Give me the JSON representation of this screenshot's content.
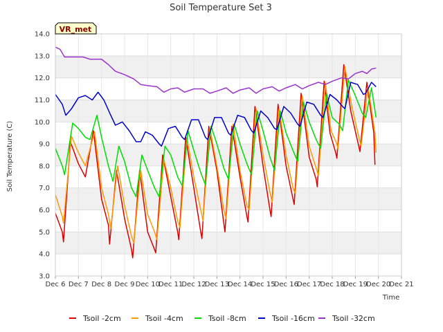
{
  "chart_data": {
    "type": "line",
    "title": "Soil Temperature Set 3",
    "xlabel": "Time",
    "ylabel": "Soil Temperature (C)",
    "xlim": [
      6,
      21
    ],
    "ylim": [
      3.0,
      14.0
    ],
    "x_ticks": [
      "Dec 6",
      "Dec 7",
      "Dec 8",
      "Dec 9",
      "Dec 10",
      "Dec 11",
      "Dec 12",
      "Dec 13",
      "Dec 14",
      "Dec 15",
      "Dec 16",
      "Dec 17",
      "Dec 18",
      "Dec 19",
      "Dec 20",
      "Dec 21"
    ],
    "y_ticks": [
      "3.0",
      "4.0",
      "5.0",
      "6.0",
      "7.0",
      "8.0",
      "9.0",
      "10.0",
      "11.0",
      "12.0",
      "13.0",
      "14.0"
    ],
    "grid": "horizontal bands",
    "legend_position": "bottom",
    "badge": "VR_met",
    "series": [
      {
        "name": "Tsoil -2cm",
        "color": "#dd0000",
        "points": [
          [
            6.0,
            5.85
          ],
          [
            6.3,
            5.0
          ],
          [
            6.35,
            4.55
          ],
          [
            6.65,
            9.1
          ],
          [
            7.0,
            8.1
          ],
          [
            7.3,
            7.5
          ],
          [
            7.65,
            9.6
          ],
          [
            8.0,
            6.5
          ],
          [
            8.3,
            5.3
          ],
          [
            8.35,
            4.45
          ],
          [
            8.65,
            7.8
          ],
          [
            9.0,
            5.6
          ],
          [
            9.3,
            4.2
          ],
          [
            9.35,
            3.82
          ],
          [
            9.65,
            7.8
          ],
          [
            10.0,
            5.0
          ],
          [
            10.3,
            4.2
          ],
          [
            10.35,
            4.05
          ],
          [
            10.65,
            8.5
          ],
          [
            11.0,
            6.6
          ],
          [
            11.3,
            5.0
          ],
          [
            11.35,
            4.65
          ],
          [
            11.65,
            9.3
          ],
          [
            12.0,
            7.0
          ],
          [
            12.3,
            5.0
          ],
          [
            12.35,
            4.7
          ],
          [
            12.65,
            9.8
          ],
          [
            13.0,
            7.8
          ],
          [
            13.3,
            5.4
          ],
          [
            13.35,
            5.0
          ],
          [
            13.65,
            9.8
          ],
          [
            14.0,
            7.5
          ],
          [
            14.3,
            5.7
          ],
          [
            14.35,
            5.45
          ],
          [
            14.65,
            10.7
          ],
          [
            15.0,
            8.0
          ],
          [
            15.3,
            6.0
          ],
          [
            15.35,
            5.7
          ],
          [
            15.65,
            10.8
          ],
          [
            16.0,
            8.0
          ],
          [
            16.3,
            6.5
          ],
          [
            16.35,
            6.25
          ],
          [
            16.65,
            11.3
          ],
          [
            17.0,
            8.4
          ],
          [
            17.3,
            7.4
          ],
          [
            17.35,
            7.05
          ],
          [
            17.65,
            11.85
          ],
          [
            17.9,
            9.5
          ],
          [
            18.15,
            8.6
          ],
          [
            18.2,
            8.35
          ],
          [
            18.5,
            12.6
          ],
          [
            18.8,
            10.5
          ],
          [
            19.15,
            8.9
          ],
          [
            19.2,
            8.65
          ],
          [
            19.5,
            11.8
          ],
          [
            19.8,
            9.5
          ],
          [
            19.85,
            8.05
          ]
        ]
      },
      {
        "name": "Tsoil -4cm",
        "color": "#ff9900",
        "points": [
          [
            6.0,
            6.7
          ],
          [
            6.3,
            5.7
          ],
          [
            6.35,
            5.4
          ],
          [
            6.7,
            9.35
          ],
          [
            7.0,
            8.6
          ],
          [
            7.3,
            8.0
          ],
          [
            7.7,
            9.55
          ],
          [
            8.0,
            7.0
          ],
          [
            8.3,
            5.8
          ],
          [
            8.4,
            5.15
          ],
          [
            8.7,
            8.0
          ],
          [
            9.0,
            6.2
          ],
          [
            9.3,
            4.8
          ],
          [
            9.4,
            4.5
          ],
          [
            9.7,
            7.8
          ],
          [
            10.0,
            5.8
          ],
          [
            10.3,
            5.0
          ],
          [
            10.4,
            4.65
          ],
          [
            10.7,
            8.3
          ],
          [
            11.0,
            7.0
          ],
          [
            11.3,
            5.5
          ],
          [
            11.4,
            5.2
          ],
          [
            11.7,
            9.3
          ],
          [
            12.0,
            7.5
          ],
          [
            12.3,
            6.0
          ],
          [
            12.4,
            5.5
          ],
          [
            12.7,
            9.7
          ],
          [
            13.0,
            8.0
          ],
          [
            13.3,
            6.0
          ],
          [
            13.4,
            5.6
          ],
          [
            13.7,
            9.9
          ],
          [
            14.0,
            7.8
          ],
          [
            14.3,
            6.2
          ],
          [
            14.4,
            6.0
          ],
          [
            14.7,
            10.6
          ],
          [
            15.0,
            8.5
          ],
          [
            15.3,
            6.8
          ],
          [
            15.4,
            6.35
          ],
          [
            15.7,
            10.6
          ],
          [
            16.0,
            8.5
          ],
          [
            16.3,
            7.0
          ],
          [
            16.4,
            6.75
          ],
          [
            16.7,
            11.2
          ],
          [
            17.0,
            8.9
          ],
          [
            17.3,
            7.9
          ],
          [
            17.4,
            7.55
          ],
          [
            17.7,
            11.8
          ],
          [
            17.95,
            9.6
          ],
          [
            18.2,
            9.0
          ],
          [
            18.25,
            8.75
          ],
          [
            18.55,
            12.5
          ],
          [
            18.85,
            10.7
          ],
          [
            19.2,
            9.1
          ],
          [
            19.25,
            8.9
          ],
          [
            19.55,
            11.6
          ],
          [
            19.85,
            9.5
          ],
          [
            19.9,
            8.6
          ]
        ]
      },
      {
        "name": "Tsoil -8cm",
        "color": "#00dd00",
        "points": [
          [
            6.0,
            8.8
          ],
          [
            6.3,
            8.0
          ],
          [
            6.4,
            7.6
          ],
          [
            6.75,
            9.95
          ],
          [
            7.0,
            9.7
          ],
          [
            7.3,
            9.3
          ],
          [
            7.5,
            9.2
          ],
          [
            7.8,
            10.3
          ],
          [
            8.0,
            9.3
          ],
          [
            8.3,
            8.0
          ],
          [
            8.5,
            7.3
          ],
          [
            8.75,
            8.9
          ],
          [
            9.0,
            8.2
          ],
          [
            9.3,
            7.0
          ],
          [
            9.5,
            6.6
          ],
          [
            9.75,
            8.5
          ],
          [
            10.0,
            7.8
          ],
          [
            10.3,
            7.0
          ],
          [
            10.5,
            6.6
          ],
          [
            10.75,
            8.9
          ],
          [
            11.0,
            8.5
          ],
          [
            11.3,
            7.5
          ],
          [
            11.5,
            7.1
          ],
          [
            11.75,
            9.6
          ],
          [
            12.0,
            8.7
          ],
          [
            12.3,
            7.7
          ],
          [
            12.5,
            7.15
          ],
          [
            12.75,
            9.8
          ],
          [
            13.0,
            9.0
          ],
          [
            13.3,
            7.9
          ],
          [
            13.5,
            7.4
          ],
          [
            13.75,
            9.9
          ],
          [
            14.0,
            9.0
          ],
          [
            14.3,
            8.1
          ],
          [
            14.5,
            7.6
          ],
          [
            14.75,
            10.5
          ],
          [
            15.0,
            9.6
          ],
          [
            15.3,
            8.4
          ],
          [
            15.5,
            7.8
          ],
          [
            15.75,
            10.5
          ],
          [
            16.0,
            9.5
          ],
          [
            16.3,
            8.7
          ],
          [
            16.5,
            8.2
          ],
          [
            16.75,
            10.9
          ],
          [
            17.0,
            10.0
          ],
          [
            17.3,
            9.2
          ],
          [
            17.5,
            8.8
          ],
          [
            17.75,
            11.3
          ],
          [
            18.0,
            10.2
          ],
          [
            18.3,
            9.9
          ],
          [
            18.45,
            9.6
          ],
          [
            18.7,
            11.9
          ],
          [
            19.0,
            11.2
          ],
          [
            19.3,
            10.4
          ],
          [
            19.45,
            10.2
          ],
          [
            19.7,
            11.55
          ],
          [
            19.9,
            10.2
          ]
        ]
      },
      {
        "name": "Tsoil -16cm",
        "color": "#0000cc",
        "points": [
          [
            6.0,
            11.25
          ],
          [
            6.3,
            10.8
          ],
          [
            6.45,
            10.3
          ],
          [
            6.7,
            10.6
          ],
          [
            7.0,
            11.1
          ],
          [
            7.3,
            11.2
          ],
          [
            7.6,
            11.0
          ],
          [
            7.85,
            11.35
          ],
          [
            8.1,
            11.0
          ],
          [
            8.4,
            10.3
          ],
          [
            8.6,
            9.85
          ],
          [
            8.9,
            10.0
          ],
          [
            9.2,
            9.6
          ],
          [
            9.5,
            9.1
          ],
          [
            9.7,
            9.1
          ],
          [
            9.9,
            9.55
          ],
          [
            10.2,
            9.4
          ],
          [
            10.5,
            9.0
          ],
          [
            10.6,
            8.9
          ],
          [
            10.9,
            9.7
          ],
          [
            11.2,
            9.8
          ],
          [
            11.5,
            9.3
          ],
          [
            11.6,
            9.2
          ],
          [
            11.9,
            10.1
          ],
          [
            12.2,
            10.1
          ],
          [
            12.5,
            9.3
          ],
          [
            12.6,
            9.2
          ],
          [
            12.9,
            10.2
          ],
          [
            13.2,
            10.2
          ],
          [
            13.5,
            9.5
          ],
          [
            13.6,
            9.4
          ],
          [
            13.9,
            10.3
          ],
          [
            14.2,
            10.2
          ],
          [
            14.5,
            9.6
          ],
          [
            14.6,
            9.5
          ],
          [
            14.9,
            10.5
          ],
          [
            15.2,
            10.2
          ],
          [
            15.5,
            9.7
          ],
          [
            15.6,
            9.65
          ],
          [
            15.9,
            10.7
          ],
          [
            16.2,
            10.4
          ],
          [
            16.5,
            9.9
          ],
          [
            16.6,
            9.8
          ],
          [
            16.9,
            10.9
          ],
          [
            17.2,
            10.8
          ],
          [
            17.5,
            10.3
          ],
          [
            17.6,
            10.2
          ],
          [
            17.9,
            11.25
          ],
          [
            18.2,
            11.0
          ],
          [
            18.45,
            10.7
          ],
          [
            18.55,
            10.6
          ],
          [
            18.8,
            11.8
          ],
          [
            19.1,
            11.7
          ],
          [
            19.35,
            11.25
          ],
          [
            19.45,
            11.3
          ],
          [
            19.7,
            11.8
          ],
          [
            19.9,
            11.6
          ]
        ]
      },
      {
        "name": "Tsoil -32cm",
        "color": "#9933cc",
        "points": [
          [
            6.0,
            13.4
          ],
          [
            6.2,
            13.3
          ],
          [
            6.4,
            12.95
          ],
          [
            6.8,
            12.95
          ],
          [
            7.2,
            12.95
          ],
          [
            7.5,
            12.85
          ],
          [
            8.0,
            12.85
          ],
          [
            8.3,
            12.6
          ],
          [
            8.6,
            12.3
          ],
          [
            9.0,
            12.15
          ],
          [
            9.4,
            11.95
          ],
          [
            9.7,
            11.7
          ],
          [
            10.0,
            11.65
          ],
          [
            10.4,
            11.6
          ],
          [
            10.7,
            11.35
          ],
          [
            11.0,
            11.5
          ],
          [
            11.3,
            11.55
          ],
          [
            11.6,
            11.35
          ],
          [
            12.0,
            11.5
          ],
          [
            12.4,
            11.5
          ],
          [
            12.7,
            11.3
          ],
          [
            13.0,
            11.4
          ],
          [
            13.4,
            11.55
          ],
          [
            13.7,
            11.3
          ],
          [
            14.0,
            11.45
          ],
          [
            14.4,
            11.55
          ],
          [
            14.7,
            11.3
          ],
          [
            15.0,
            11.5
          ],
          [
            15.4,
            11.6
          ],
          [
            15.7,
            11.4
          ],
          [
            16.0,
            11.55
          ],
          [
            16.4,
            11.7
          ],
          [
            16.7,
            11.5
          ],
          [
            17.0,
            11.65
          ],
          [
            17.4,
            11.8
          ],
          [
            17.7,
            11.7
          ],
          [
            18.0,
            11.85
          ],
          [
            18.4,
            12.0
          ],
          [
            18.7,
            11.95
          ],
          [
            19.0,
            12.2
          ],
          [
            19.3,
            12.3
          ],
          [
            19.5,
            12.2
          ],
          [
            19.7,
            12.4
          ],
          [
            19.9,
            12.45
          ]
        ]
      }
    ]
  }
}
